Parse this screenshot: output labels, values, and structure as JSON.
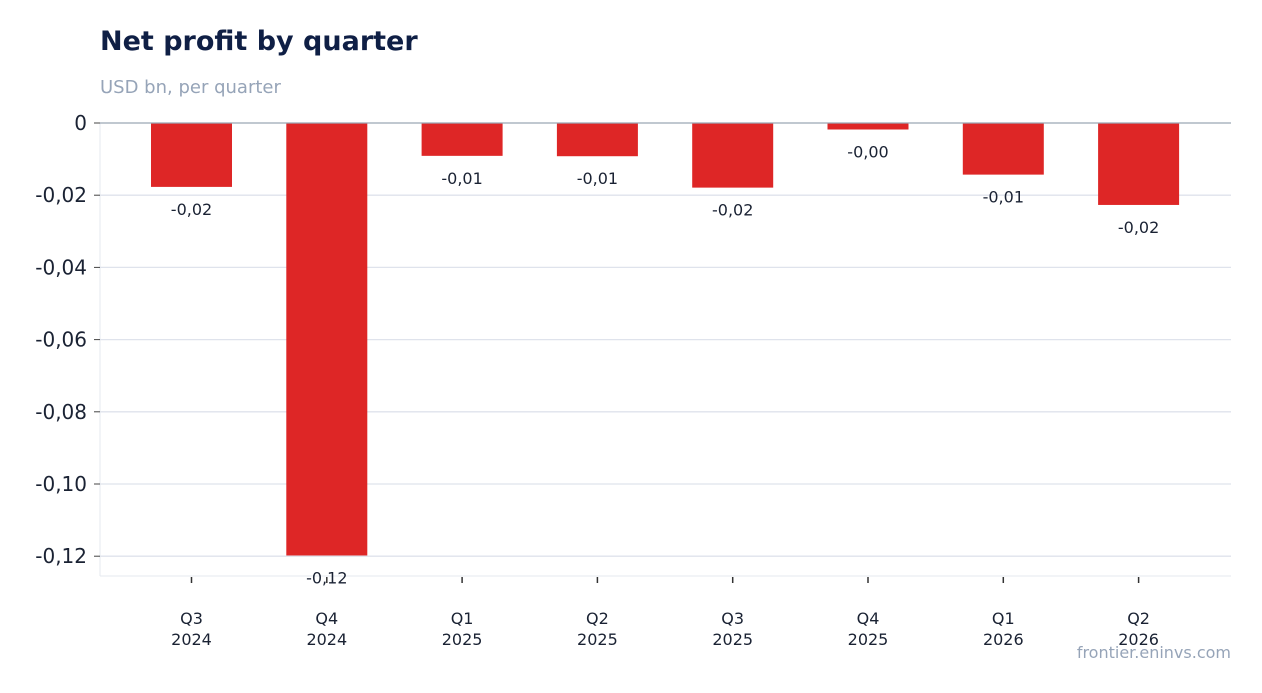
{
  "header": {
    "title": "Net profit by quarter",
    "subtitle": "USD bn, per quarter"
  },
  "footer": {
    "source": "frontier.eninvs.com"
  },
  "colors": {
    "bar": "#de2626",
    "grid": "#dfe3ec",
    "zero_line": "#9aa6b5",
    "text": "#1a2233"
  },
  "chart_data": {
    "type": "bar",
    "title": "Net profit by quarter",
    "subtitle": "USD bn, per quarter",
    "xlabel": "",
    "ylabel": "",
    "categories": [
      [
        "Q3",
        "2024"
      ],
      [
        "Q4",
        "2024"
      ],
      [
        "Q1",
        "2025"
      ],
      [
        "Q2",
        "2025"
      ],
      [
        "Q3",
        "2025"
      ],
      [
        "Q4",
        "2025"
      ],
      [
        "Q1",
        "2026"
      ],
      [
        "Q2",
        "2026"
      ]
    ],
    "values": [
      -0.0177,
      -0.1198,
      -0.0091,
      -0.0092,
      -0.0179,
      -0.0018,
      -0.0143,
      -0.0227
    ],
    "data_labels": [
      "-0,02",
      "-0,12",
      "-0,01",
      "-0,01",
      "-0,02",
      "-0,00",
      "-0,01",
      "-0,02"
    ],
    "yticks": [
      0,
      -0.02,
      -0.04,
      -0.06,
      -0.08,
      -0.1,
      -0.12
    ],
    "ytick_labels": [
      "0",
      "-0,02",
      "-0,04",
      "-0,06",
      "-0,08",
      "-0,10",
      "-0,12"
    ],
    "ylim": [
      -0.126,
      0
    ],
    "grid": true,
    "legend": "none"
  }
}
